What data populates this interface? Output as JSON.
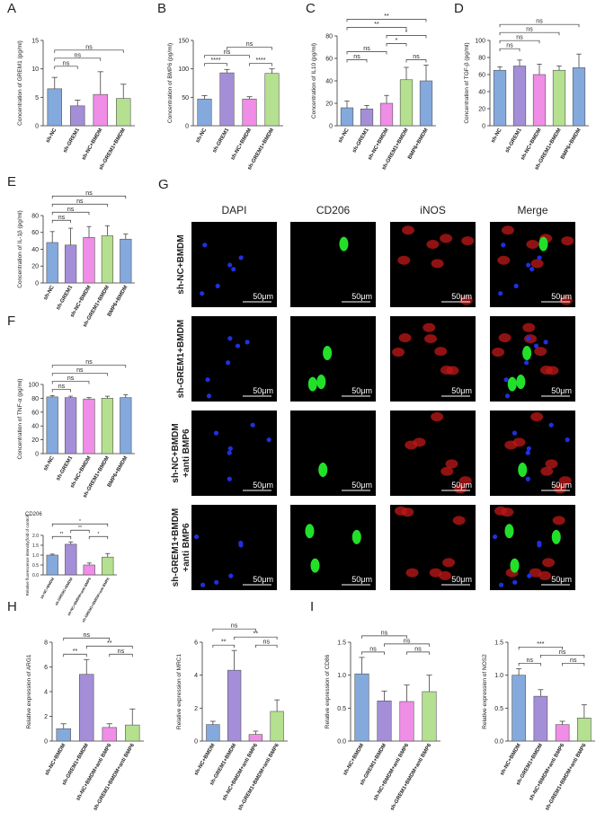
{
  "chart_data": [
    {
      "type": "bar",
      "label": "A",
      "ylabel": "Concentration of GREM1 (pg/ml)",
      "categories": [
        "sh-NC",
        "sh-GREM1",
        "sh-NC+BMDM",
        "sh-GREM1+BMDM"
      ],
      "values": [
        6.5,
        3.5,
        5.5,
        4.8
      ],
      "errors": [
        2,
        1,
        4,
        2.5
      ],
      "colors": [
        "#84a9dd",
        "#a48ed8",
        "#f08de6",
        "#b5e08f"
      ],
      "ylim": [
        0,
        15
      ],
      "yticks": [
        0,
        5,
        10,
        15
      ],
      "brackets": [
        {
          "between": [
            0,
            1
          ],
          "label": "ns"
        },
        {
          "between": [
            0,
            2
          ],
          "label": "ns"
        },
        {
          "between": [
            0,
            3
          ],
          "label": "ns"
        }
      ]
    },
    {
      "type": "bar",
      "label": "B",
      "ylabel": "Concentration of BMP6 (pg/ml)",
      "categories": [
        "sh-NC",
        "sh-GREM1",
        "sh-NC+BMDM",
        "sh-GREM1+BMDM"
      ],
      "values": [
        47,
        93,
        47,
        92
      ],
      "errors": [
        6,
        6,
        4,
        8
      ],
      "colors": [
        "#84a9dd",
        "#a48ed8",
        "#f08de6",
        "#b5e08f"
      ],
      "ylim": [
        0,
        150
      ],
      "yticks": [
        0,
        50,
        100,
        150
      ],
      "brackets": [
        {
          "between": [
            0,
            1
          ],
          "label": "****"
        },
        {
          "between": [
            2,
            3
          ],
          "label": "****"
        },
        {
          "between": [
            0,
            2
          ],
          "label": "ns"
        },
        {
          "between": [
            1,
            3
          ],
          "label": "ns"
        }
      ]
    },
    {
      "type": "bar",
      "label": "C",
      "ylabel": "Concentration of IL10 (pg/ml)",
      "categories": [
        "sh-NC",
        "sh-GREM1",
        "sh-NC+BMDM",
        "sh-GREM1+BMDM",
        "BMP6+BMDM"
      ],
      "values": [
        16,
        15,
        20,
        41,
        40
      ],
      "errors": [
        6,
        3,
        7,
        11,
        14
      ],
      "colors": [
        "#84a9dd",
        "#a48ed8",
        "#f08de6",
        "#b5e08f",
        "#84a9dd"
      ],
      "ylim": [
        0,
        80
      ],
      "yticks": [
        0,
        20,
        40,
        60,
        80
      ],
      "brackets": [
        {
          "between": [
            0,
            1
          ],
          "label": "ns"
        },
        {
          "between": [
            3,
            4
          ],
          "label": "ns"
        },
        {
          "between": [
            0,
            2
          ],
          "label": "ns"
        },
        {
          "between": [
            2,
            3
          ],
          "label": "*"
        },
        {
          "between": [
            2,
            4
          ],
          "label": "*"
        },
        {
          "between": [
            0,
            3
          ],
          "label": "**"
        },
        {
          "between": [
            0,
            4
          ],
          "label": "**"
        }
      ]
    },
    {
      "type": "bar",
      "label": "D",
      "ylabel": "Concentration of TGF-β (pg/ml)",
      "categories": [
        "sh-NC",
        "sh-GREM1",
        "sh-NC+BMDM",
        "sh-GREM1+BMDM",
        "BMP6+BMDM"
      ],
      "values": [
        65,
        70,
        60,
        65,
        68
      ],
      "errors": [
        4,
        7,
        12,
        5,
        16
      ],
      "colors": [
        "#84a9dd",
        "#a48ed8",
        "#f08de6",
        "#b5e08f",
        "#84a9dd"
      ],
      "ylim": [
        0,
        100
      ],
      "yticks": [
        0,
        20,
        40,
        60,
        80,
        100
      ],
      "brackets": [
        {
          "between": [
            0,
            1
          ],
          "label": "ns"
        },
        {
          "between": [
            0,
            2
          ],
          "label": "ns"
        },
        {
          "between": [
            0,
            3
          ],
          "label": "ns"
        },
        {
          "between": [
            0,
            4
          ],
          "label": "ns"
        }
      ]
    },
    {
      "type": "bar",
      "label": "E",
      "ylabel": "Concentration of IL-1β (pg/ml)",
      "categories": [
        "sh-NC",
        "sh-GREM1",
        "sh-NC+BMDM",
        "sh-GREM1+BMDM",
        "BMP6+BMDM"
      ],
      "values": [
        48,
        45,
        54,
        56,
        52
      ],
      "errors": [
        13,
        20,
        13,
        12,
        6
      ],
      "colors": [
        "#84a9dd",
        "#a48ed8",
        "#f08de6",
        "#b5e08f",
        "#84a9dd"
      ],
      "ylim": [
        0,
        80
      ],
      "yticks": [
        0,
        20,
        40,
        60,
        80
      ],
      "brackets": [
        {
          "between": [
            0,
            1
          ],
          "label": "ns"
        },
        {
          "between": [
            0,
            2
          ],
          "label": "ns"
        },
        {
          "between": [
            0,
            3
          ],
          "label": "ns"
        },
        {
          "between": [
            0,
            4
          ],
          "label": "ns"
        }
      ]
    },
    {
      "type": "bar",
      "label": "F",
      "ylabel": "Concentration of TNF-α (pg/ml)",
      "categories": [
        "sh-NC",
        "sh-GREM1",
        "sh-NC+BMDM",
        "sh-GREM1+BMDM",
        "BMP6+BMDM"
      ],
      "values": [
        82,
        81,
        79,
        80,
        81
      ],
      "errors": [
        2,
        2,
        2,
        3,
        4
      ],
      "colors": [
        "#84a9dd",
        "#a48ed8",
        "#f08de6",
        "#b5e08f",
        "#84a9dd"
      ],
      "ylim": [
        0,
        100
      ],
      "yticks": [
        0,
        20,
        40,
        60,
        80,
        100
      ],
      "brackets": [
        {
          "between": [
            0,
            1
          ],
          "label": "ns"
        },
        {
          "between": [
            0,
            2
          ],
          "label": "ns"
        },
        {
          "between": [
            0,
            3
          ],
          "label": "ns"
        },
        {
          "between": [
            0,
            4
          ],
          "label": "ns"
        }
      ]
    },
    {
      "type": "bar",
      "title": "CD206",
      "ylabel": "Relative fluorescence intensity(fold of control)",
      "categories": [
        "sh-NC+BMDM",
        "sh-GREM1+BMDM",
        "sh-NC+BMDM+anti BMP6",
        "sh-GREM1+BMDM+anti BMP6"
      ],
      "values": [
        1.0,
        1.55,
        0.5,
        0.9
      ],
      "errors": [
        0.05,
        0.12,
        0.1,
        0.18
      ],
      "colors": [
        "#84a9dd",
        "#a48ed8",
        "#f08de6",
        "#b5e08f"
      ],
      "ylim": [
        0,
        2
      ],
      "yticks": [
        {
          "value": 0,
          "label": "0.0"
        },
        0.5,
        {
          "value": 1,
          "label": "1.0"
        },
        1.5,
        {
          "value": 2,
          "label": "2.0"
        }
      ],
      "brackets": [
        {
          "between": [
            0,
            1
          ],
          "label": "**"
        },
        {
          "between": [
            1,
            2
          ],
          "label": "**"
        },
        {
          "between": [
            2,
            3
          ],
          "label": "*"
        },
        {
          "between": [
            0,
            3
          ],
          "label": "*"
        }
      ]
    },
    {
      "type": "bar",
      "label": "H",
      "ylabel": "Relative expression of ARG1",
      "categories": [
        "sh-NC+BMDM",
        "sh-GREM1+BMDM",
        "sh-NC+BMDM+anti BMP6",
        "sh-GREM1+BMDM+anti BMP6"
      ],
      "values": [
        1.0,
        5.4,
        1.1,
        1.3
      ],
      "errors": [
        0.4,
        1.2,
        0.3,
        1.3
      ],
      "colors": [
        "#84a9dd",
        "#a48ed8",
        "#f08de6",
        "#b5e08f"
      ],
      "ylim": [
        0,
        8
      ],
      "yticks": [
        0,
        2,
        4,
        6,
        8
      ],
      "brackets": [
        {
          "between": [
            2,
            3
          ],
          "label": "ns"
        },
        {
          "between": [
            0,
            1
          ],
          "label": "**"
        },
        {
          "between": [
            1,
            3
          ],
          "label": "**"
        },
        {
          "between": [
            0,
            2
          ],
          "label": "ns"
        }
      ]
    },
    {
      "type": "bar",
      "ylabel": "Relative expression of MRC1",
      "categories": [
        "sh-NC+BMDM",
        "sh-GREM1+BMDM",
        "sh-NC+BMDM+anti BMP6",
        "sh-GREM1+BMDM+anti BMP6"
      ],
      "values": [
        1.0,
        4.3,
        0.4,
        1.8
      ],
      "errors": [
        0.2,
        1.2,
        0.2,
        0.7
      ],
      "colors": [
        "#84a9dd",
        "#a48ed8",
        "#f08de6",
        "#b5e08f"
      ],
      "ylim": [
        0,
        6
      ],
      "yticks": [
        0,
        2,
        4,
        6
      ],
      "brackets": [
        {
          "between": [
            2,
            3
          ],
          "label": "ns"
        },
        {
          "between": [
            0,
            1
          ],
          "label": "**"
        },
        {
          "between": [
            1,
            3
          ],
          "label": "**"
        },
        {
          "between": [
            0,
            2
          ],
          "label": "ns"
        }
      ]
    },
    {
      "type": "bar",
      "label": "I",
      "ylabel": "Relative expression of CD86",
      "categories": [
        "sh-NC+BMDM",
        "sh-GREM1+BMDM",
        "sh-NC+BMDM+anti BMP6",
        "sh-GREM1+BMDM+anti BMP6"
      ],
      "values": [
        1.02,
        0.61,
        0.6,
        0.75
      ],
      "errors": [
        0.25,
        0.15,
        0.25,
        0.25
      ],
      "colors": [
        "#84a9dd",
        "#a48ed8",
        "#f08de6",
        "#b5e08f"
      ],
      "ylim": [
        0,
        1.5
      ],
      "yticks": [
        {
          "value": 0,
          "label": "0.0"
        },
        0.5,
        {
          "value": 1,
          "label": "1.0"
        },
        1.5
      ],
      "brackets": [
        {
          "between": [
            2,
            3
          ],
          "label": "ns"
        },
        {
          "between": [
            0,
            1
          ],
          "label": "ns"
        },
        {
          "between": [
            1,
            3
          ],
          "label": "ns"
        },
        {
          "between": [
            0,
            2
          ],
          "label": "ns"
        }
      ]
    },
    {
      "type": "bar",
      "ylabel": "Relative expression of NOS2",
      "categories": [
        "sh-NC+BMDM",
        "sh-GREM1+BMDM",
        "sh-NC+BMDM+anti BMP6",
        "sh-GREM1+BMDM+anti BMP6"
      ],
      "values": [
        1.0,
        0.68,
        0.25,
        0.35
      ],
      "errors": [
        0.1,
        0.1,
        0.05,
        0.2
      ],
      "colors": [
        "#84a9dd",
        "#a48ed8",
        "#f08de6",
        "#b5e08f"
      ],
      "ylim": [
        0,
        1.5
      ],
      "yticks": [
        {
          "value": 0,
          "label": "0.0"
        },
        0.5,
        {
          "value": 1,
          "label": "1.0"
        },
        1.5
      ],
      "brackets": [
        {
          "between": [
            2,
            3
          ],
          "label": "ns"
        },
        {
          "between": [
            0,
            1
          ],
          "label": "ns"
        },
        {
          "between": [
            1,
            3
          ],
          "label": "ns"
        },
        {
          "between": [
            0,
            2
          ],
          "label": "***"
        }
      ]
    }
  ],
  "figure_g": {
    "label": "G",
    "columns": [
      "DAPI",
      "CD206",
      "iNOS",
      "Merge"
    ],
    "rows": [
      [
        "sh-NC+BMDM"
      ],
      [
        "sh-GREM1+BMDM"
      ],
      [
        "sh-NC+BMDM",
        "+anti BMP6"
      ],
      [
        "sh-GREM1+BMDM",
        "+anti BMP6"
      ]
    ],
    "scale_bar": "50μm"
  }
}
